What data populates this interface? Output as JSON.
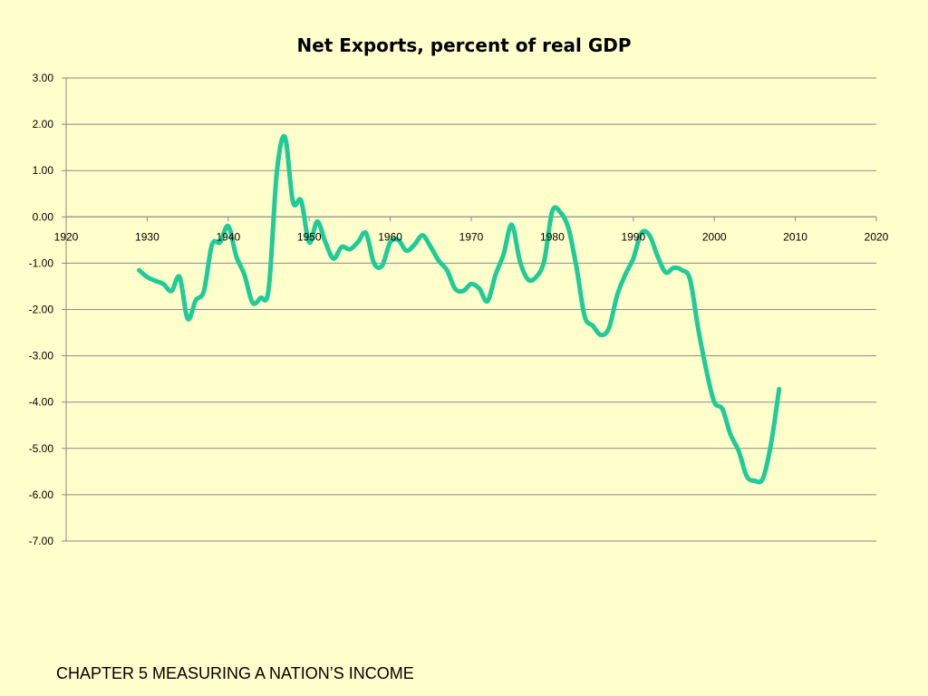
{
  "chart_data": {
    "type": "line",
    "title": "Net Exports, percent of real GDP",
    "xlabel": "",
    "ylabel": "",
    "xlim": [
      1920,
      2020
    ],
    "ylim": [
      -7,
      3
    ],
    "x_ticks": [
      "1920",
      "1930",
      "1940",
      "1950",
      "1960",
      "1970",
      "1980",
      "1990",
      "2000",
      "2010",
      "2020"
    ],
    "y_ticks": [
      "3.00",
      "2.00",
      "1.00",
      "0.00",
      "-1.00",
      "-2.00",
      "-3.00",
      "-4.00",
      "-5.00",
      "-6.00",
      "-7.00"
    ],
    "grid": true,
    "legend": "none",
    "line_color": "#1FCC99",
    "series": [
      {
        "x": [
          1929,
          1930,
          1931,
          1932,
          1933,
          1934,
          1935,
          1936,
          1937,
          1938,
          1939,
          1940,
          1941,
          1942,
          1943,
          1944,
          1945,
          1946,
          1947,
          1948,
          1949,
          1950,
          1951,
          1952,
          1953,
          1954,
          1955,
          1956,
          1957,
          1958,
          1959,
          1960,
          1961,
          1962,
          1963,
          1964,
          1965,
          1966,
          1967,
          1968,
          1969,
          1970,
          1971,
          1972,
          1973,
          1974,
          1975,
          1976,
          1977,
          1978,
          1979,
          1980,
          1981,
          1982,
          1983,
          1984,
          1985,
          1986,
          1987,
          1988,
          1989,
          1990,
          1991,
          1992,
          1993,
          1994,
          1995,
          1996,
          1997,
          1998,
          1999,
          2000,
          2001,
          2002,
          2003,
          2004,
          2005,
          2006,
          2007,
          2008
        ],
        "values": [
          -1.15,
          -1.3,
          -1.38,
          -1.45,
          -1.6,
          -1.3,
          -2.2,
          -1.8,
          -1.6,
          -0.6,
          -0.55,
          -0.2,
          -0.85,
          -1.25,
          -1.85,
          -1.75,
          -1.55,
          0.95,
          1.72,
          0.32,
          0.35,
          -0.55,
          -0.1,
          -0.55,
          -0.9,
          -0.65,
          -0.7,
          -0.55,
          -0.35,
          -1.0,
          -1.05,
          -0.55,
          -0.5,
          -0.73,
          -0.6,
          -0.4,
          -0.65,
          -0.95,
          -1.15,
          -1.55,
          -1.6,
          -1.45,
          -1.55,
          -1.82,
          -1.25,
          -0.8,
          -0.17,
          -0.95,
          -1.35,
          -1.3,
          -0.95,
          0.12,
          0.1,
          -0.25,
          -1.1,
          -2.15,
          -2.35,
          -2.55,
          -2.4,
          -1.7,
          -1.25,
          -0.9,
          -0.35,
          -0.4,
          -0.85,
          -1.2,
          -1.1,
          -1.15,
          -1.35,
          -2.4,
          -3.3,
          -4.0,
          -4.15,
          -4.7,
          -5.05,
          -5.6,
          -5.7,
          -5.65,
          -4.9,
          -3.72
        ]
      }
    ]
  },
  "footer": {
    "text": "CHAPTER 5 MEASURING A NATION’S INCOME"
  }
}
